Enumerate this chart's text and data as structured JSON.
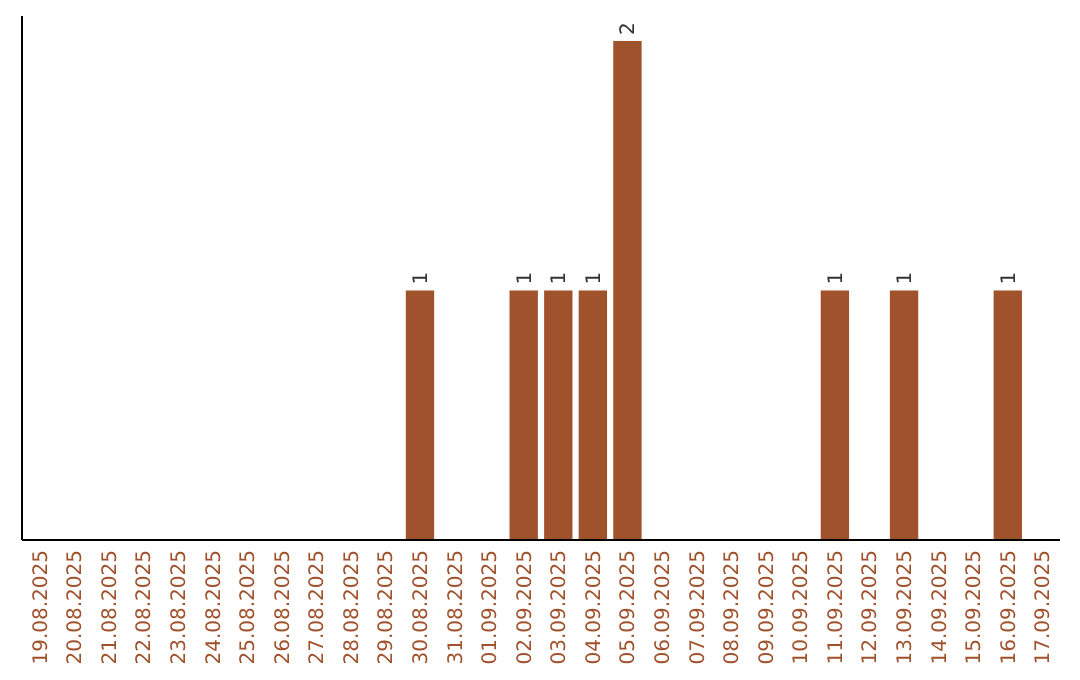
{
  "chart_data": {
    "type": "bar",
    "categories": [
      "19.08.2025",
      "20.08.2025",
      "21.08.2025",
      "22.08.2025",
      "23.08.2025",
      "24.08.2025",
      "25.08.2025",
      "26.08.2025",
      "27.08.2025",
      "28.08.2025",
      "29.08.2025",
      "30.08.2025",
      "31.08.2025",
      "01.09.2025",
      "02.09.2025",
      "03.09.2025",
      "04.09.2025",
      "05.09.2025",
      "06.09.2025",
      "07.09.2025",
      "08.09.2025",
      "09.09.2025",
      "10.09.2025",
      "11.09.2025",
      "12.09.2025",
      "13.09.2025",
      "14.09.2025",
      "15.09.2025",
      "16.09.2025",
      "17.09.2025"
    ],
    "values": [
      0,
      0,
      0,
      0,
      0,
      0,
      0,
      0,
      0,
      0,
      0,
      1,
      0,
      0,
      1,
      1,
      1,
      2,
      0,
      0,
      0,
      0,
      0,
      1,
      0,
      1,
      0,
      0,
      1,
      0
    ],
    "value_labels": [
      null,
      null,
      null,
      null,
      null,
      null,
      null,
      null,
      null,
      null,
      null,
      "1",
      null,
      null,
      "1",
      "1",
      "1",
      "2",
      null,
      null,
      null,
      null,
      null,
      "1",
      null,
      "1",
      null,
      null,
      "1",
      null
    ],
    "color": "#a0522d",
    "ylim": [
      0,
      2.1
    ],
    "tick_labels": "x"
  }
}
